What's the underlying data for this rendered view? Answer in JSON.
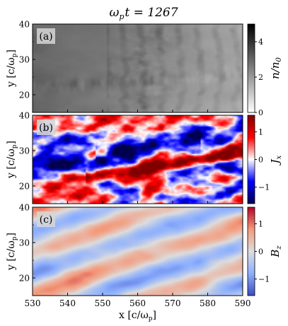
{
  "figure": {
    "title": "ω",
    "title_sub": "p",
    "title_rest": "t = 1267"
  },
  "chart_data": [
    {
      "type": "heatmap",
      "panel_label": "(a)",
      "quantity": "density",
      "ylabel": "y [c/ω",
      "ylabel_sub": "p",
      "ylabel_end": "]",
      "xlim": [
        530,
        590
      ],
      "ylim": [
        15,
        40
      ],
      "yticks": [
        "20",
        "30",
        "40"
      ],
      "colorbar": {
        "label": "n/n",
        "label_sub": "0",
        "range": [
          0,
          5
        ],
        "ticks": [
          "0",
          "2",
          "4"
        ],
        "colormap": "greys"
      }
    },
    {
      "type": "heatmap",
      "panel_label": "(b)",
      "quantity": "current",
      "ylabel": "y [c/ω",
      "ylabel_sub": "p",
      "ylabel_end": "]",
      "xlim": [
        530,
        590
      ],
      "ylim": [
        15,
        40
      ],
      "yticks": [
        "20",
        "30",
        "40"
      ],
      "colorbar": {
        "label": "J",
        "label_sub": "x",
        "range": [
          -1.6,
          1.6
        ],
        "ticks": [
          "−1",
          "0",
          "1"
        ],
        "colormap": "seismic"
      }
    },
    {
      "type": "heatmap",
      "panel_label": "(c)",
      "quantity": "field",
      "ylabel": "y [c/ω",
      "ylabel_sub": "p",
      "ylabel_end": "]",
      "xlim": [
        530,
        590
      ],
      "ylim": [
        15,
        40
      ],
      "yticks": [
        "20",
        "30",
        "40"
      ],
      "xticks": [
        "530",
        "540",
        "550",
        "560",
        "570",
        "580",
        "590"
      ],
      "xlabel": "x [c/ω",
      "xlabel_sub": "p",
      "xlabel_end": "]",
      "colorbar": {
        "label": "B",
        "label_sub": "z",
        "range": [
          -1.6,
          1.6
        ],
        "ticks": [
          "−1",
          "0",
          "1"
        ],
        "colormap": "coolwarm"
      }
    }
  ]
}
